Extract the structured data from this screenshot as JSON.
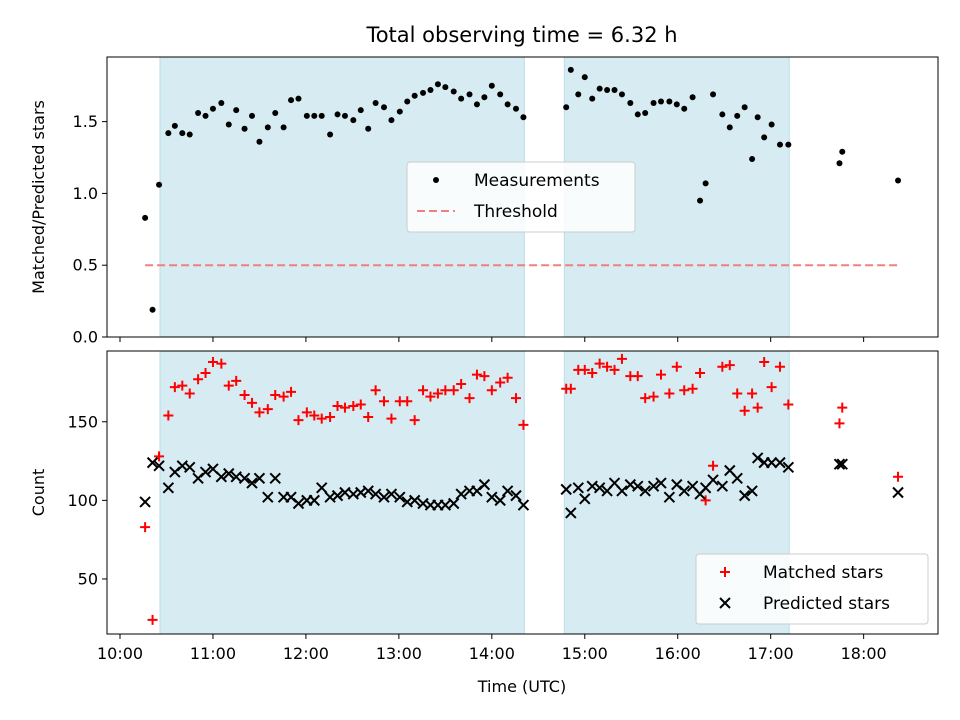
{
  "chart_data": {
    "type": "scatter",
    "title": "Total observing time = 6.32 h",
    "xlabel": "Time (UTC)",
    "x_tick_labels": [
      "10:00",
      "11:00",
      "12:00",
      "13:00",
      "14:00",
      "15:00",
      "16:00",
      "17:00",
      "18:00"
    ],
    "x_ticks_hours": [
      10,
      11,
      12,
      13,
      14,
      15,
      16,
      17,
      18
    ],
    "xlim_hours": [
      9.86,
      18.8
    ],
    "shaded_intervals_hours": [
      [
        10.43,
        14.35
      ],
      [
        14.78,
        17.2
      ]
    ],
    "shade_color": "#add8e6",
    "panels": [
      {
        "ylabel": "Matched/Predicted stars",
        "ylim": [
          0,
          1.95
        ],
        "yticks": [
          0,
          0.5,
          1.0,
          1.5
        ],
        "y_tick_labels": [
          "0.0",
          "0.5",
          "1.0",
          "1.5"
        ],
        "legend": {
          "position": "center",
          "entries": [
            "Measurements",
            "Threshold"
          ]
        },
        "threshold": {
          "name": "Threshold",
          "y": 0.5,
          "x_range": [
            10.27,
            18.37
          ],
          "color": "#f08080",
          "style": "dashed"
        },
        "series": [
          {
            "name": "Measurements",
            "marker": "dot",
            "color": "#000000",
            "x": [
              10.27,
              10.35,
              10.42,
              10.52,
              10.59,
              10.67,
              10.75,
              10.84,
              10.92,
              11.0,
              11.09,
              11.17,
              11.25,
              11.34,
              11.42,
              11.5,
              11.59,
              11.67,
              11.76,
              11.84,
              11.92,
              12.01,
              12.09,
              12.17,
              12.26,
              12.34,
              12.42,
              12.51,
              12.59,
              12.67,
              12.75,
              12.84,
              12.92,
              13.01,
              13.09,
              13.17,
              13.26,
              13.34,
              13.42,
              13.5,
              13.59,
              13.67,
              13.76,
              13.84,
              13.92,
              14.0,
              14.09,
              14.17,
              14.26,
              14.34,
              14.8,
              14.85,
              14.93,
              15.0,
              15.08,
              15.16,
              15.24,
              15.32,
              15.4,
              15.49,
              15.57,
              15.65,
              15.74,
              15.82,
              15.91,
              15.99,
              16.07,
              16.16,
              16.24,
              16.3,
              16.38,
              16.48,
              16.56,
              16.64,
              16.72,
              16.8,
              16.86,
              16.93,
              17.01,
              17.1,
              17.19,
              17.74,
              17.77,
              18.37
            ],
            "y": [
              0.83,
              0.19,
              1.06,
              1.42,
              1.47,
              1.42,
              1.41,
              1.56,
              1.54,
              1.59,
              1.63,
              1.48,
              1.58,
              1.45,
              1.54,
              1.36,
              1.46,
              1.56,
              1.46,
              1.65,
              1.66,
              1.54,
              1.54,
              1.54,
              1.41,
              1.55,
              1.54,
              1.51,
              1.58,
              1.45,
              1.63,
              1.6,
              1.51,
              1.57,
              1.64,
              1.68,
              1.7,
              1.72,
              1.76,
              1.74,
              1.71,
              1.66,
              1.69,
              1.62,
              1.67,
              1.75,
              1.69,
              1.62,
              1.59,
              1.53,
              1.6,
              1.86,
              1.69,
              1.81,
              1.66,
              1.73,
              1.72,
              1.72,
              1.69,
              1.63,
              1.55,
              1.56,
              1.63,
              1.64,
              1.64,
              1.62,
              1.59,
              1.67,
              0.95,
              1.07,
              1.69,
              1.55,
              1.46,
              1.54,
              1.6,
              1.24,
              1.53,
              1.39,
              1.48,
              1.34,
              1.34,
              1.21,
              1.29,
              1.09
            ]
          }
        ]
      },
      {
        "ylabel": "Count",
        "ylim": [
          15,
          195
        ],
        "yticks": [
          50,
          100,
          150
        ],
        "y_tick_labels": [
          "50",
          "100",
          "150"
        ],
        "legend": {
          "position": "lower right",
          "entries": [
            "Matched stars",
            "Predicted stars"
          ]
        },
        "series": [
          {
            "name": "Matched stars",
            "marker": "plus",
            "color": "#ff0000",
            "x": [
              10.27,
              10.35,
              10.42,
              10.52,
              10.59,
              10.67,
              10.75,
              10.84,
              10.92,
              11.0,
              11.09,
              11.17,
              11.25,
              11.34,
              11.42,
              11.5,
              11.59,
              11.67,
              11.76,
              11.84,
              11.92,
              12.01,
              12.09,
              12.17,
              12.26,
              12.34,
              12.42,
              12.51,
              12.59,
              12.67,
              12.75,
              12.84,
              12.92,
              13.01,
              13.09,
              13.17,
              13.26,
              13.34,
              13.42,
              13.5,
              13.59,
              13.67,
              13.76,
              13.84,
              13.92,
              14.0,
              14.09,
              14.17,
              14.26,
              14.34,
              14.8,
              14.85,
              14.93,
              15.0,
              15.08,
              15.16,
              15.24,
              15.32,
              15.4,
              15.49,
              15.57,
              15.65,
              15.74,
              15.82,
              15.91,
              15.99,
              16.07,
              16.16,
              16.24,
              16.3,
              16.38,
              16.48,
              16.56,
              16.64,
              16.72,
              16.8,
              16.86,
              16.93,
              17.01,
              17.1,
              17.19,
              17.74,
              17.77,
              18.37
            ],
            "y": [
              83,
              24,
              128,
              154,
              172,
              173,
              168,
              177,
              181,
              188,
              187,
              173,
              176,
              167,
              162,
              156,
              158,
              167,
              166,
              169,
              151,
              156,
              154,
              152,
              153,
              160,
              159,
              160,
              161,
              153,
              170,
              163,
              152,
              163,
              163,
              151,
              170,
              166,
              168,
              170,
              170,
              174,
              165,
              180,
              179,
              170,
              175,
              178,
              165,
              148,
              171,
              171,
              183,
              183,
              181,
              187,
              185,
              183,
              190,
              179,
              179,
              165,
              166,
              180,
              168,
              185,
              170,
              171,
              181,
              100,
              122,
              185,
              186,
              168,
              157,
              168,
              159,
              188,
              172,
              185,
              161,
              149,
              159,
              115
            ]
          },
          {
            "name": "Predicted stars",
            "marker": "cross",
            "color": "#000000",
            "x": [
              10.27,
              10.35,
              10.42,
              10.52,
              10.59,
              10.67,
              10.75,
              10.84,
              10.92,
              11.0,
              11.09,
              11.17,
              11.25,
              11.34,
              11.42,
              11.5,
              11.59,
              11.67,
              11.76,
              11.84,
              11.92,
              12.01,
              12.09,
              12.17,
              12.26,
              12.34,
              12.42,
              12.51,
              12.59,
              12.67,
              12.75,
              12.84,
              12.92,
              13.01,
              13.09,
              13.17,
              13.26,
              13.34,
              13.42,
              13.5,
              13.59,
              13.67,
              13.76,
              13.84,
              13.92,
              14.0,
              14.09,
              14.17,
              14.26,
              14.34,
              14.8,
              14.85,
              14.93,
              15.0,
              15.08,
              15.16,
              15.24,
              15.32,
              15.4,
              15.49,
              15.57,
              15.65,
              15.74,
              15.82,
              15.91,
              15.99,
              16.07,
              16.16,
              16.24,
              16.3,
              16.38,
              16.48,
              16.56,
              16.64,
              16.72,
              16.8,
              16.86,
              16.93,
              17.01,
              17.1,
              17.19,
              17.74,
              17.77,
              18.37
            ],
            "y": [
              99,
              124,
              122,
              108,
              118,
              122,
              121,
              114,
              118,
              120,
              115,
              117,
              115,
              114,
              111,
              114,
              102,
              114,
              102,
              102,
              98,
              100,
              100,
              108,
              102,
              103,
              105,
              104,
              105,
              106,
              104,
              102,
              104,
              102,
              99,
              100,
              98,
              97,
              97,
              97,
              98,
              104,
              106,
              106,
              110,
              102,
              100,
              106,
              103,
              97,
              107,
              92,
              108,
              101,
              109,
              108,
              106,
              111,
              106,
              110,
              109,
              106,
              109,
              111,
              102,
              110,
              106,
              109,
              104,
              108,
              113,
              109,
              119,
              114,
              103,
              106,
              127,
              124,
              124,
              124,
              121,
              123,
              123,
              105
            ]
          }
        ]
      }
    ]
  }
}
